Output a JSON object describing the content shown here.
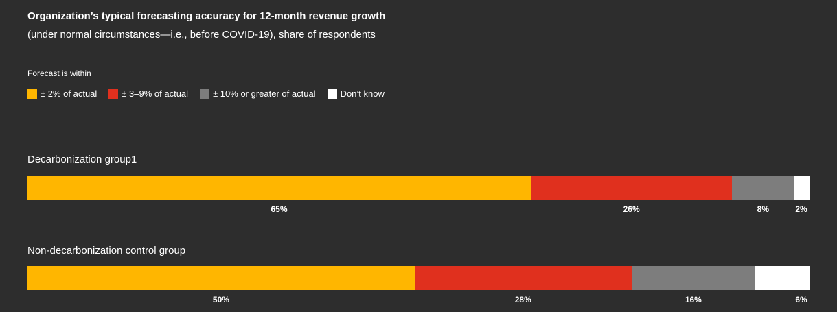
{
  "chart_data": {
    "type": "bar",
    "orientation": "horizontal-stacked",
    "title": "Organization’s typical forecasting accuracy for 12-month revenue growth",
    "subtitle": "(under normal circumstances—i.e., before COVID-19), share of respondents",
    "legend_title": "Forecast is within",
    "legend": [
      {
        "label": "± 2% of actual",
        "color": "#ffb600"
      },
      {
        "label": "± 3–9% of actual",
        "color": "#e0301e"
      },
      {
        "label": "± 10% or greater of actual",
        "color": "#7d7d7d"
      },
      {
        "label": "Don’t know",
        "color": "#ffffff"
      }
    ],
    "categories": [
      "Decarbonization group1",
      "Non-decarbonization control group"
    ],
    "series": [
      {
        "name": "± 2% of actual",
        "values": [
          65,
          50
        ],
        "labels": [
          "65%",
          "50%"
        ]
      },
      {
        "name": "± 3–9% of actual",
        "values": [
          26,
          28
        ],
        "labels": [
          "26%",
          "28%"
        ]
      },
      {
        "name": "± 10% or greater of actual",
        "values": [
          8,
          16
        ],
        "labels": [
          "8%",
          "16%"
        ]
      },
      {
        "name": "Don’t know",
        "values": [
          2,
          6
        ],
        "labels": [
          "2%",
          "6%"
        ]
      }
    ],
    "xlim": [
      0,
      101
    ]
  }
}
